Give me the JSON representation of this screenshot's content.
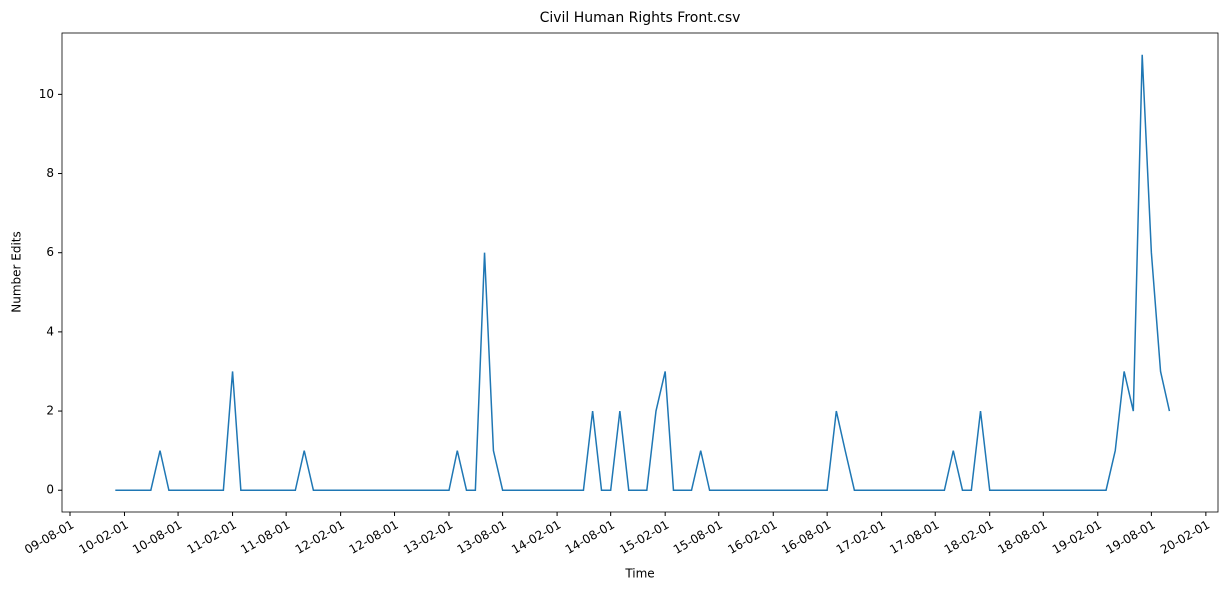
{
  "chart_data": {
    "type": "line",
    "title": "Civil Human Rights Front.csv",
    "x_label": "Time",
    "y_label": "Number Edits",
    "x": [
      "10-01-01",
      "10-02-01",
      "10-03-01",
      "10-04-01",
      "10-05-01",
      "10-06-01",
      "10-07-01",
      "10-08-01",
      "10-09-01",
      "10-10-01",
      "10-11-01",
      "10-12-01",
      "11-01-01",
      "11-02-01",
      "11-03-01",
      "11-04-01",
      "11-05-01",
      "11-06-01",
      "11-07-01",
      "11-08-01",
      "11-09-01",
      "11-10-01",
      "11-11-01",
      "11-12-01",
      "12-01-01",
      "12-02-01",
      "12-03-01",
      "12-04-01",
      "12-05-01",
      "12-06-01",
      "12-07-01",
      "12-08-01",
      "12-09-01",
      "12-10-01",
      "12-11-01",
      "12-12-01",
      "13-01-01",
      "13-02-01",
      "13-03-01",
      "13-04-01",
      "13-05-01",
      "13-06-01",
      "13-07-01",
      "13-08-01",
      "13-09-01",
      "13-10-01",
      "13-11-01",
      "13-12-01",
      "14-01-01",
      "14-02-01",
      "14-03-01",
      "14-04-01",
      "14-05-01",
      "14-06-01",
      "14-07-01",
      "14-08-01",
      "14-09-01",
      "14-10-01",
      "14-11-01",
      "14-12-01",
      "15-01-01",
      "15-02-01",
      "15-03-01",
      "15-04-01",
      "15-05-01",
      "15-06-01",
      "15-07-01",
      "15-08-01",
      "15-09-01",
      "15-10-01",
      "15-11-01",
      "15-12-01",
      "16-01-01",
      "16-02-01",
      "16-03-01",
      "16-04-01",
      "16-05-01",
      "16-06-01",
      "16-07-01",
      "16-08-01",
      "16-09-01",
      "16-10-01",
      "16-11-01",
      "16-12-01",
      "17-01-01",
      "17-02-01",
      "17-03-01",
      "17-04-01",
      "17-05-01",
      "17-06-01",
      "17-07-01",
      "17-08-01",
      "17-09-01",
      "17-10-01",
      "17-11-01",
      "17-12-01",
      "18-01-01",
      "18-02-01",
      "18-03-01",
      "18-04-01",
      "18-05-01",
      "18-06-01",
      "18-07-01",
      "18-08-01",
      "18-09-01",
      "18-10-01",
      "18-11-01",
      "18-12-01",
      "19-01-01",
      "19-02-01",
      "19-03-01",
      "19-04-01",
      "19-05-01",
      "19-06-01",
      "19-07-01",
      "19-08-01",
      "19-09-01",
      "19-10-01"
    ],
    "series": [
      {
        "name": "Number Edits",
        "color": "#1f77b4",
        "values": [
          0,
          0,
          0,
          0,
          0,
          1,
          0,
          0,
          0,
          0,
          0,
          0,
          0,
          3,
          0,
          0,
          0,
          0,
          0,
          0,
          0,
          1,
          0,
          0,
          0,
          0,
          0,
          0,
          0,
          0,
          0,
          0,
          0,
          0,
          0,
          0,
          0,
          0,
          1,
          0,
          0,
          6,
          1,
          0,
          0,
          0,
          0,
          0,
          0,
          0,
          0,
          0,
          0,
          2,
          0,
          0,
          2,
          0,
          0,
          0,
          2,
          3,
          0,
          0,
          0,
          1,
          0,
          0,
          0,
          0,
          0,
          0,
          0,
          0,
          0,
          0,
          0,
          0,
          0,
          0,
          2,
          1,
          0,
          0,
          0,
          0,
          0,
          0,
          0,
          0,
          0,
          0,
          0,
          1,
          0,
          0,
          2,
          0,
          0,
          0,
          0,
          0,
          0,
          0,
          0,
          0,
          0,
          0,
          0,
          0,
          0,
          1,
          3,
          2,
          11,
          6,
          3,
          2
        ]
      }
    ],
    "xlim": [
      "09-07-05",
      "20-03-13"
    ],
    "xticks": [
      "09-08-01",
      "10-02-01",
      "10-08-01",
      "11-02-01",
      "11-08-01",
      "12-02-01",
      "12-08-01",
      "13-02-01",
      "13-08-01",
      "14-02-01",
      "14-08-01",
      "15-02-01",
      "15-08-01",
      "16-02-01",
      "16-08-01",
      "17-02-01",
      "17-08-01",
      "18-02-01",
      "18-08-01",
      "19-02-01",
      "19-08-01",
      "20-02-01"
    ],
    "ylim": [
      -0.55,
      11.55
    ],
    "yticks": [
      0,
      2,
      4,
      6,
      8,
      10
    ],
    "grid": false
  }
}
